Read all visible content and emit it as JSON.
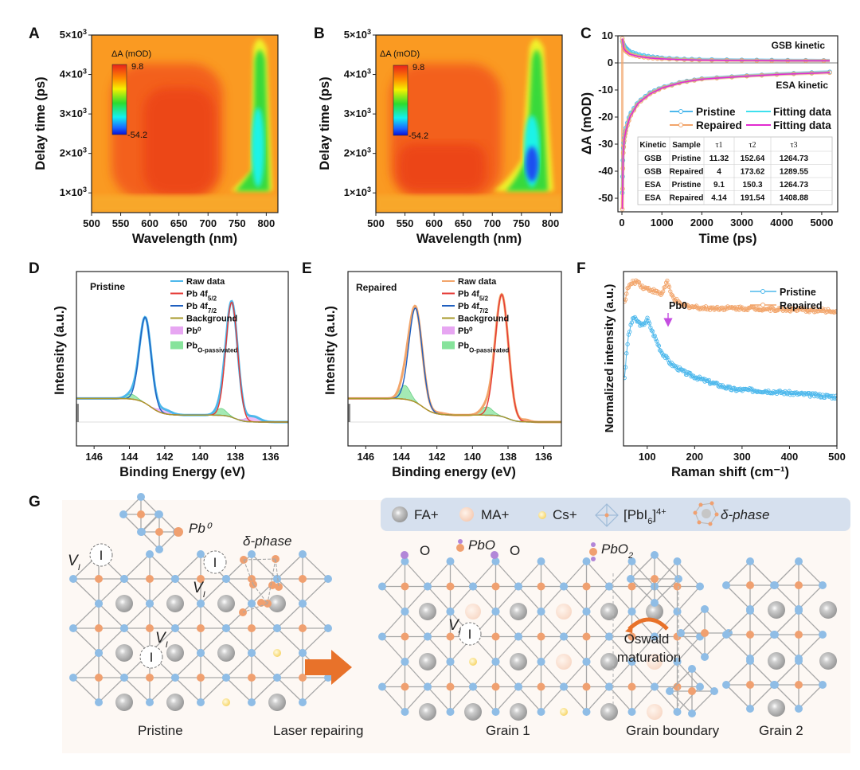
{
  "figure": {
    "panels": [
      "A",
      "B",
      "C",
      "D",
      "E",
      "F",
      "G"
    ]
  },
  "colors": {
    "pristine": "#4db8ec",
    "repaired": "#f2a56b",
    "fit_pristine": "#3ee0ee",
    "fit_repaired": "#e22bd0",
    "pb45": "#e53935",
    "pb47": "#1f5fbf",
    "background_line": "#a79a2a",
    "pb0_fill": "#e7a6f2",
    "pbO_fill": "#86e39b",
    "blue_atom": "#8fbde6",
    "orange_atom": "#f0a070",
    "purple_atom": "#b286d8"
  },
  "chart_data": [
    {
      "id": "A",
      "type": "heatmap",
      "title": "",
      "xlabel": "Wavelength (nm)",
      "ylabel": "Delay time (ps)",
      "xlim": [
        500,
        820
      ],
      "ylim": [
        500,
        5000
      ],
      "xticks": [
        "500",
        "550",
        "600",
        "650",
        "700",
        "750",
        "800"
      ],
      "yticks": [
        "1×10³",
        "2×10³",
        "3×10³",
        "4×10³",
        "5×10³"
      ],
      "colorbar": {
        "label": "ΔA (mOD)",
        "max": "9.8",
        "min": "-54.2"
      },
      "features": [
        {
          "kind": "ESA_band",
          "center_nm": 760,
          "min_value_region": "cyan",
          "delay_range_ps": [
            900,
            4900
          ]
        },
        {
          "kind": "positive_region",
          "wavelength_range_nm": [
            540,
            710
          ],
          "value": "red"
        }
      ]
    },
    {
      "id": "B",
      "type": "heatmap",
      "title": "",
      "xlabel": "Wavelength (nm)",
      "ylabel": "Delay time (ps)",
      "xlim": [
        500,
        820
      ],
      "ylim": [
        500,
        5000
      ],
      "xticks": [
        "500",
        "550",
        "600",
        "650",
        "700",
        "750",
        "800"
      ],
      "yticks": [
        "1×10³",
        "2×10³",
        "3×10³",
        "4×10³",
        "5×10³"
      ],
      "colorbar": {
        "label": "ΔA (mOD)",
        "max": "9.8",
        "min": "-54.2"
      },
      "features": [
        {
          "kind": "ESA_band",
          "center_nm": 755,
          "min_value_region": "blue",
          "delay_range_ps": [
            900,
            4900
          ],
          "deepest_delay_ps": 1500
        },
        {
          "kind": "positive_region",
          "wavelength_range_nm": [
            530,
            690
          ],
          "value": "red"
        }
      ]
    },
    {
      "id": "C",
      "type": "line",
      "xlabel": "Time (ps)",
      "ylabel": "ΔA (mOD)",
      "xlim": [
        -100,
        5400
      ],
      "ylim": [
        -55,
        10
      ],
      "xticks": [
        "0",
        "1000",
        "2000",
        "3000",
        "4000",
        "5000"
      ],
      "yticks": [
        "10",
        "0",
        "-10",
        "-20",
        "-30",
        "-40",
        "-50"
      ],
      "annotations": [
        "GSB kinetic",
        "ESA kinetic"
      ],
      "legend": [
        "Pristine",
        "Repaired",
        "Fitting data",
        "Fitting data"
      ],
      "series": [
        {
          "name": "Pristine GSB",
          "x": [
            10,
            50,
            100,
            200,
            400,
            700,
            1000,
            1500,
            2000,
            3000,
            4000,
            5200
          ],
          "y": [
            8,
            6.5,
            5.5,
            4.2,
            3.2,
            2.4,
            1.9,
            1.5,
            1.3,
            1.1,
            1.0,
            0.9
          ]
        },
        {
          "name": "Repaired GSB",
          "x": [
            10,
            50,
            100,
            200,
            400,
            700,
            1000,
            1500,
            2000,
            3000,
            4000,
            5200
          ],
          "y": [
            9,
            5.2,
            4.3,
            3.2,
            2.4,
            1.8,
            1.5,
            1.2,
            1.0,
            0.9,
            0.8,
            0.8
          ]
        },
        {
          "name": "Pristine ESA",
          "x": [
            10,
            30,
            60,
            100,
            200,
            400,
            700,
            1000,
            1500,
            2000,
            3000,
            4000,
            5200
          ],
          "y": [
            -48,
            -32,
            -27,
            -24,
            -19,
            -14.5,
            -11,
            -9,
            -7,
            -5.8,
            -4.8,
            -4.0,
            -3.3
          ]
        },
        {
          "name": "Repaired ESA",
          "x": [
            10,
            30,
            60,
            100,
            200,
            400,
            700,
            1000,
            1500,
            2000,
            3000,
            4000,
            5200
          ],
          "y": [
            -54,
            -34,
            -28,
            -25,
            -20,
            -15,
            -11.5,
            -9.3,
            -7.2,
            -6.0,
            -5.0,
            -4.2,
            -3.6
          ]
        }
      ],
      "table": {
        "headers": [
          "Kinetic",
          "Sample",
          "τ1",
          "τ2",
          "τ3"
        ],
        "rows": [
          [
            "GSB",
            "Pristine",
            "11.32",
            "152.64",
            "1264.73"
          ],
          [
            "GSB",
            "Repaired",
            "4",
            "173.62",
            "1289.55"
          ],
          [
            "ESA",
            "Pristine",
            "9.1",
            "150.3",
            "1264.73"
          ],
          [
            "ESA",
            "Repaired",
            "4.14",
            "191.54",
            "1408.88"
          ]
        ]
      }
    },
    {
      "id": "D",
      "type": "line",
      "label": "Pristine",
      "xlabel": "Binding Energy (eV)",
      "ylabel": "Intensity (a.u.)",
      "xlim": [
        147,
        135
      ],
      "xticks": [
        "146",
        "144",
        "142",
        "140",
        "138",
        "136"
      ],
      "legend": [
        "Raw data",
        "Pb 4f5/2",
        "Pb 4f7/2",
        "Background",
        "Pb⁰",
        "PbO-passivated"
      ],
      "peaks": [
        {
          "name": "Pb 4f7/2",
          "center": 143.1,
          "height": 0.62,
          "width": 0.45
        },
        {
          "name": "Pb 4f5/2",
          "center": 138.2,
          "height": 0.83,
          "width": 0.45
        },
        {
          "name": "Pb⁰",
          "center": 142.0,
          "height": 0.03,
          "width": 0.5
        },
        {
          "name": "Pb⁰",
          "center": 137.0,
          "height": 0.04,
          "width": 0.5
        },
        {
          "name": "PbO-passivated",
          "center": 143.9,
          "height": 0.035,
          "width": 0.4
        },
        {
          "name": "PbO-passivated",
          "center": 138.8,
          "height": 0.05,
          "width": 0.4
        }
      ]
    },
    {
      "id": "E",
      "type": "line",
      "label": "Repaired",
      "xlabel": "Binding energy (eV)",
      "ylabel": "Intensity (a.u.)",
      "xlim": [
        147,
        135
      ],
      "xticks": [
        "146",
        "144",
        "142",
        "140",
        "138",
        "136"
      ],
      "legend": [
        "Raw data",
        "Pb 4f5/2",
        "Pb 4f7/2",
        "Background",
        "Pb⁰",
        "PbO-passivated"
      ],
      "peaks": [
        {
          "name": "Pb 4f7/2",
          "center": 143.2,
          "height": 0.68,
          "width": 0.5
        },
        {
          "name": "Pb 4f5/2",
          "center": 138.35,
          "height": 0.88,
          "width": 0.5
        },
        {
          "name": "Pb⁰",
          "center": 141.8,
          "height": 0.01,
          "width": 0.4
        },
        {
          "name": "Pb⁰",
          "center": 137.0,
          "height": 0.015,
          "width": 0.3
        },
        {
          "name": "PbO-passivated",
          "center": 143.8,
          "height": 0.1,
          "width": 0.4
        },
        {
          "name": "PbO-passivated",
          "center": 139.2,
          "height": 0.06,
          "width": 0.45
        }
      ]
    },
    {
      "id": "F",
      "type": "scatter",
      "xlabel": "Raman shift (cm⁻¹)",
      "ylabel": "Normalized intensity (a.u.)",
      "xlim": [
        50,
        500
      ],
      "xticks": [
        "100",
        "200",
        "300",
        "400",
        "500"
      ],
      "legend": [
        "Pristine",
        "Repaired"
      ],
      "annotations": [
        "Pb0"
      ],
      "series": [
        {
          "name": "Pristine",
          "x": [
            52,
            60,
            70,
            80,
            90,
            100,
            110,
            130,
            150,
            180,
            220,
            280,
            350,
            420,
            500
          ],
          "y": [
            0.35,
            0.62,
            0.75,
            0.72,
            0.69,
            0.74,
            0.66,
            0.52,
            0.44,
            0.38,
            0.33,
            0.27,
            0.26,
            0.24,
            0.22
          ]
        },
        {
          "name": "Repaired",
          "x": [
            52,
            60,
            70,
            80,
            90,
            100,
            110,
            130,
            142,
            150,
            170,
            220,
            300,
            400,
            500
          ],
          "y": [
            0.85,
            0.95,
            0.98,
            0.99,
            0.95,
            0.94,
            0.93,
            0.9,
            0.99,
            0.9,
            0.83,
            0.81,
            0.81,
            0.8,
            0.79
          ]
        }
      ]
    }
  ],
  "schematic_g": {
    "legend": [
      "FA+",
      "MA+",
      "Cs+",
      "[PbI6]4+",
      "δ-phase"
    ],
    "labels": {
      "pristine": "Pristine",
      "laser_repairing": "Laser repairing",
      "grain1": "Grain 1",
      "grain_boundary": "Grain boundary",
      "grain2": "Grain 2",
      "pb0": "Pb⁰",
      "delta_phase": "δ-phase",
      "vacancy": "VI",
      "iodine": "I",
      "oxygen": "O",
      "pbo": "PbO",
      "pbo2": "PbO₂",
      "oswald": "Oswald",
      "maturation": "maturation"
    }
  }
}
